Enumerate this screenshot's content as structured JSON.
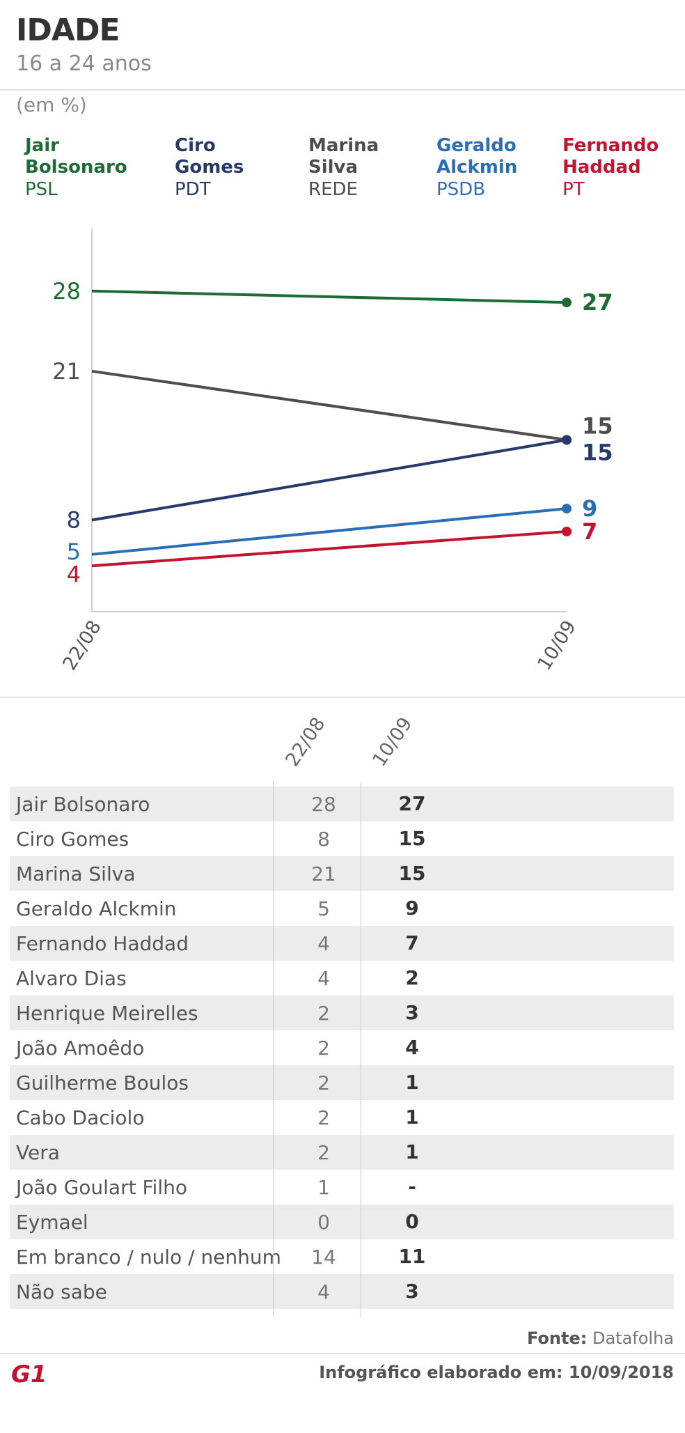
{
  "header": {
    "title": "IDADE",
    "subtitle": "16 a 24 anos",
    "unit": "(em %)"
  },
  "legend": [
    {
      "name": "Jair\nBolsonaro",
      "party": "PSL",
      "color": "#1e6b35"
    },
    {
      "name": "Ciro\nGomes",
      "party": "PDT",
      "color": "#253a6b"
    },
    {
      "name": "Marina\nSilva",
      "party": "REDE",
      "color": "#4d4d4d"
    },
    {
      "name": "Geraldo\nAlckmin",
      "party": "PSDB",
      "color": "#2a6fb5"
    },
    {
      "name": "Fernando\nHaddad",
      "party": "PT",
      "color": "#c4122f"
    }
  ],
  "chart_data": {
    "type": "line",
    "x": [
      "22/08",
      "10/09"
    ],
    "series": [
      {
        "name": "Jair Bolsonaro",
        "values": [
          28,
          27
        ],
        "color": "#1e6b35"
      },
      {
        "name": "Marina Silva",
        "values": [
          21,
          15
        ],
        "color": "#4d4d4d"
      },
      {
        "name": "Ciro Gomes",
        "values": [
          8,
          15
        ],
        "color": "#253a6b"
      },
      {
        "name": "Geraldo Alckmin",
        "values": [
          5,
          9
        ],
        "color": "#2a6fb5"
      },
      {
        "name": "Fernando Haddad",
        "values": [
          4,
          7
        ],
        "color": "#c4122f"
      }
    ],
    "ylim": [
      0,
      32
    ],
    "grid": false
  },
  "table": {
    "headers": [
      "22/08",
      "10/09"
    ],
    "rows": [
      {
        "name": "Jair Bolsonaro",
        "v1": "28",
        "v2": "27"
      },
      {
        "name": "Ciro Gomes",
        "v1": "8",
        "v2": "15"
      },
      {
        "name": "Marina Silva",
        "v1": "21",
        "v2": "15"
      },
      {
        "name": "Geraldo Alckmin",
        "v1": "5",
        "v2": "9"
      },
      {
        "name": "Fernando Haddad",
        "v1": "4",
        "v2": "7"
      },
      {
        "name": "Alvaro Dias",
        "v1": "4",
        "v2": "2"
      },
      {
        "name": "Henrique Meirelles",
        "v1": "2",
        "v2": "3"
      },
      {
        "name": "João Amoêdo",
        "v1": "2",
        "v2": "4"
      },
      {
        "name": "Guilherme Boulos",
        "v1": "2",
        "v2": "1"
      },
      {
        "name": "Cabo Daciolo",
        "v1": "2",
        "v2": "1"
      },
      {
        "name": "Vera",
        "v1": "2",
        "v2": "1"
      },
      {
        "name": "João Goulart Filho",
        "v1": "1",
        "v2": "-"
      },
      {
        "name": "Eymael",
        "v1": "0",
        "v2": "0"
      },
      {
        "name": "Em branco / nulo / nenhum",
        "v1": "14",
        "v2": "11"
      },
      {
        "name": "Não sabe",
        "v1": "4",
        "v2": "3"
      }
    ]
  },
  "footer": {
    "source_label": "Fonte:",
    "source_value": "Datafolha",
    "credit": "Infográfico elaborado em: 10/09/2018",
    "logo_text": "G1",
    "logo_color": "#c4122f"
  }
}
